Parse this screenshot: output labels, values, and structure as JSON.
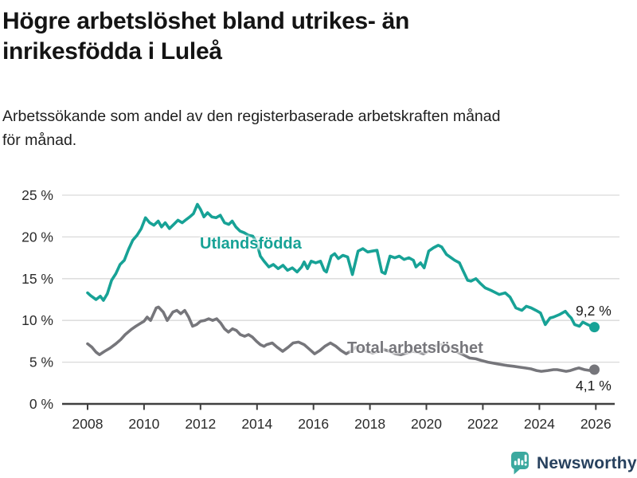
{
  "header": {
    "title": "Högre arbetslöshet bland utrikes- än inrikesfödda i Luleå",
    "title_lines": [
      "Högre arbetslöshet bland utrikes- än",
      "inrikesfödda i Luleå"
    ],
    "subtitle_lines": [
      "Arbetssökande som andel av den registerbaserade arbetskraften månad",
      "för månad."
    ]
  },
  "branding": {
    "logo_text": "Newsworthy",
    "logo_icon": "bar-chart-speech-bubble",
    "logo_color": "#3BA99F",
    "logo_text_color": "#27415E"
  },
  "colors": {
    "series_foreign_born": "#17A296",
    "series_total": "#76767B",
    "grid": "#D9D9D9",
    "axis": "#3F3F3F",
    "tick_text": "#2B2B2B",
    "end_label_text": "#1A1A1A"
  },
  "chart_data": {
    "type": "line",
    "title": "Högre arbetslöshet bland utrikes- än inrikesfödda i Luleå",
    "subtitle": "Arbetssökande som andel av den registerbaserade arbetskraften månad för månad.",
    "unit": "%",
    "grid": "horizontal",
    "legend_position": "inline-labels",
    "x_axis": {
      "range": [
        2007.6,
        2026.35
      ],
      "ticks": [
        2008,
        2010,
        2012,
        2014,
        2016,
        2018,
        2020,
        2022,
        2024,
        2026
      ],
      "tick_labels": [
        "2008",
        "2010",
        "2012",
        "2014",
        "2016",
        "2018",
        "2020",
        "2022",
        "2024",
        "2026"
      ]
    },
    "y_axis": {
      "range": [
        0,
        25
      ],
      "ticks": [
        0,
        5,
        10,
        15,
        20,
        25
      ],
      "tick_labels": [
        "0 %",
        "5 %",
        "10 %",
        "15 %",
        "20 %",
        "25 %"
      ]
    },
    "series": [
      {
        "name": "Utlandsfödda",
        "color": "#17A296",
        "end_label": "9,2 %",
        "end_value": 9.2,
        "points": [
          [
            2008.0,
            13.3
          ],
          [
            2008.1,
            13.0
          ],
          [
            2008.3,
            12.5
          ],
          [
            2008.45,
            12.9
          ],
          [
            2008.56,
            12.4
          ],
          [
            2008.7,
            13.2
          ],
          [
            2008.85,
            14.8
          ],
          [
            2009.0,
            15.6
          ],
          [
            2009.15,
            16.7
          ],
          [
            2009.3,
            17.2
          ],
          [
            2009.45,
            18.5
          ],
          [
            2009.6,
            19.6
          ],
          [
            2009.75,
            20.2
          ],
          [
            2009.9,
            21.0
          ],
          [
            2010.05,
            22.3
          ],
          [
            2010.2,
            21.7
          ],
          [
            2010.35,
            21.4
          ],
          [
            2010.5,
            21.9
          ],
          [
            2010.62,
            21.2
          ],
          [
            2010.75,
            21.7
          ],
          [
            2010.9,
            21.0
          ],
          [
            2011.05,
            21.5
          ],
          [
            2011.2,
            22.0
          ],
          [
            2011.35,
            21.7
          ],
          [
            2011.5,
            22.1
          ],
          [
            2011.62,
            22.4
          ],
          [
            2011.75,
            22.8
          ],
          [
            2011.89,
            23.9
          ],
          [
            2012.0,
            23.3
          ],
          [
            2012.12,
            22.4
          ],
          [
            2012.25,
            22.9
          ],
          [
            2012.4,
            22.4
          ],
          [
            2012.55,
            22.3
          ],
          [
            2012.7,
            22.6
          ],
          [
            2012.85,
            21.7
          ],
          [
            2013.0,
            21.5
          ],
          [
            2013.12,
            21.9
          ],
          [
            2013.25,
            21.2
          ],
          [
            2013.4,
            20.7
          ],
          [
            2013.55,
            20.5
          ],
          [
            2013.7,
            20.2
          ],
          [
            2013.85,
            20.1
          ],
          [
            2013.98,
            19.4
          ],
          [
            2014.12,
            17.7
          ],
          [
            2014.25,
            17.1
          ],
          [
            2014.42,
            16.4
          ],
          [
            2014.58,
            16.7
          ],
          [
            2014.75,
            16.2
          ],
          [
            2014.92,
            16.6
          ],
          [
            2015.08,
            16.0
          ],
          [
            2015.25,
            16.3
          ],
          [
            2015.42,
            15.8
          ],
          [
            2015.58,
            16.4
          ],
          [
            2015.67,
            17.0
          ],
          [
            2015.79,
            16.2
          ],
          [
            2015.92,
            17.1
          ],
          [
            2016.08,
            16.9
          ],
          [
            2016.25,
            17.1
          ],
          [
            2016.38,
            16.0
          ],
          [
            2016.46,
            15.8
          ],
          [
            2016.63,
            17.7
          ],
          [
            2016.75,
            18.0
          ],
          [
            2016.88,
            17.4
          ],
          [
            2017.04,
            17.8
          ],
          [
            2017.21,
            17.6
          ],
          [
            2017.38,
            15.5
          ],
          [
            2017.58,
            18.3
          ],
          [
            2017.75,
            18.6
          ],
          [
            2017.92,
            18.2
          ],
          [
            2018.08,
            18.3
          ],
          [
            2018.25,
            18.4
          ],
          [
            2018.42,
            15.8
          ],
          [
            2018.54,
            15.6
          ],
          [
            2018.71,
            17.7
          ],
          [
            2018.88,
            17.5
          ],
          [
            2019.04,
            17.7
          ],
          [
            2019.21,
            17.3
          ],
          [
            2019.38,
            17.5
          ],
          [
            2019.54,
            17.2
          ],
          [
            2019.63,
            16.4
          ],
          [
            2019.79,
            16.9
          ],
          [
            2019.92,
            16.3
          ],
          [
            2020.08,
            18.3
          ],
          [
            2020.25,
            18.7
          ],
          [
            2020.42,
            19.0
          ],
          [
            2020.54,
            18.8
          ],
          [
            2020.71,
            17.9
          ],
          [
            2020.88,
            17.5
          ],
          [
            2021.0,
            17.2
          ],
          [
            2021.17,
            16.9
          ],
          [
            2021.29,
            16.0
          ],
          [
            2021.46,
            14.8
          ],
          [
            2021.58,
            14.7
          ],
          [
            2021.75,
            15.0
          ],
          [
            2021.92,
            14.4
          ],
          [
            2022.08,
            13.9
          ],
          [
            2022.29,
            13.6
          ],
          [
            2022.58,
            13.1
          ],
          [
            2022.79,
            13.3
          ],
          [
            2022.96,
            12.8
          ],
          [
            2023.17,
            11.5
          ],
          [
            2023.38,
            11.2
          ],
          [
            2023.54,
            11.7
          ],
          [
            2023.71,
            11.5
          ],
          [
            2023.88,
            11.2
          ],
          [
            2024.04,
            10.9
          ],
          [
            2024.21,
            9.5
          ],
          [
            2024.38,
            10.3
          ],
          [
            2024.5,
            10.4
          ],
          [
            2024.71,
            10.7
          ],
          [
            2024.92,
            11.1
          ],
          [
            2025.04,
            10.6
          ],
          [
            2025.13,
            10.3
          ],
          [
            2025.25,
            9.5
          ],
          [
            2025.42,
            9.3
          ],
          [
            2025.54,
            9.8
          ],
          [
            2025.71,
            9.5
          ],
          [
            2025.83,
            9.3
          ],
          [
            2025.95,
            9.2
          ]
        ]
      },
      {
        "name": "Total arbetslöshet",
        "color": "#76767B",
        "end_label": "4,1 %",
        "end_value": 4.1,
        "points": [
          [
            2008.0,
            7.2
          ],
          [
            2008.15,
            6.8
          ],
          [
            2008.3,
            6.2
          ],
          [
            2008.42,
            5.9
          ],
          [
            2008.6,
            6.3
          ],
          [
            2008.8,
            6.7
          ],
          [
            2009.0,
            7.2
          ],
          [
            2009.17,
            7.7
          ],
          [
            2009.33,
            8.3
          ],
          [
            2009.54,
            8.9
          ],
          [
            2009.71,
            9.3
          ],
          [
            2009.85,
            9.6
          ],
          [
            2010.0,
            9.9
          ],
          [
            2010.11,
            10.4
          ],
          [
            2010.23,
            10.0
          ],
          [
            2010.43,
            11.5
          ],
          [
            2010.51,
            11.6
          ],
          [
            2010.68,
            11.0
          ],
          [
            2010.82,
            10.0
          ],
          [
            2011.02,
            11.0
          ],
          [
            2011.16,
            11.2
          ],
          [
            2011.3,
            10.8
          ],
          [
            2011.44,
            11.2
          ],
          [
            2011.58,
            10.4
          ],
          [
            2011.72,
            9.3
          ],
          [
            2011.86,
            9.5
          ],
          [
            2012.0,
            9.9
          ],
          [
            2012.15,
            10.0
          ],
          [
            2012.29,
            10.2
          ],
          [
            2012.43,
            10.0
          ],
          [
            2012.57,
            10.2
          ],
          [
            2012.71,
            9.7
          ],
          [
            2012.85,
            9.0
          ],
          [
            2012.99,
            8.6
          ],
          [
            2013.13,
            9.0
          ],
          [
            2013.27,
            8.8
          ],
          [
            2013.41,
            8.3
          ],
          [
            2013.56,
            8.1
          ],
          [
            2013.7,
            8.3
          ],
          [
            2013.84,
            8.0
          ],
          [
            2013.98,
            7.5
          ],
          [
            2014.12,
            7.1
          ],
          [
            2014.25,
            6.9
          ],
          [
            2014.34,
            7.1
          ],
          [
            2014.54,
            7.3
          ],
          [
            2014.71,
            6.8
          ],
          [
            2014.91,
            6.3
          ],
          [
            2015.11,
            6.8
          ],
          [
            2015.28,
            7.3
          ],
          [
            2015.47,
            7.4
          ],
          [
            2015.67,
            7.1
          ],
          [
            2015.84,
            6.6
          ],
          [
            2016.04,
            6.0
          ],
          [
            2016.23,
            6.4
          ],
          [
            2016.4,
            6.9
          ],
          [
            2016.6,
            7.3
          ],
          [
            2016.8,
            6.9
          ],
          [
            2016.97,
            6.4
          ],
          [
            2017.16,
            6.0
          ],
          [
            2017.36,
            6.4
          ],
          [
            2017.5,
            6.8
          ],
          [
            2017.7,
            6.6
          ],
          [
            2017.9,
            6.3
          ],
          [
            2018.1,
            6.1
          ],
          [
            2018.3,
            6.3
          ],
          [
            2018.5,
            6.5
          ],
          [
            2018.7,
            6.3
          ],
          [
            2018.9,
            6.0
          ],
          [
            2019.1,
            5.9
          ],
          [
            2019.3,
            6.1
          ],
          [
            2019.5,
            6.3
          ],
          [
            2019.7,
            6.2
          ],
          [
            2019.9,
            6.0
          ],
          [
            2020.1,
            6.4
          ],
          [
            2020.3,
            6.9
          ],
          [
            2020.5,
            7.1
          ],
          [
            2020.7,
            6.9
          ],
          [
            2020.9,
            6.6
          ],
          [
            2021.1,
            6.2
          ],
          [
            2021.3,
            5.9
          ],
          [
            2021.53,
            5.5
          ],
          [
            2021.75,
            5.4
          ],
          [
            2021.95,
            5.2
          ],
          [
            2022.18,
            5.0
          ],
          [
            2022.5,
            4.8
          ],
          [
            2022.86,
            4.6
          ],
          [
            2023.1,
            4.5
          ],
          [
            2023.3,
            4.4
          ],
          [
            2023.5,
            4.3
          ],
          [
            2023.7,
            4.2
          ],
          [
            2023.9,
            4.0
          ],
          [
            2024.07,
            3.9
          ],
          [
            2024.3,
            4.0
          ],
          [
            2024.5,
            4.1
          ],
          [
            2024.63,
            4.1
          ],
          [
            2024.8,
            4.0
          ],
          [
            2024.95,
            3.9
          ],
          [
            2025.1,
            4.0
          ],
          [
            2025.28,
            4.2
          ],
          [
            2025.4,
            4.3
          ],
          [
            2025.6,
            4.1
          ],
          [
            2025.8,
            4.0
          ],
          [
            2025.95,
            4.1
          ]
        ]
      }
    ]
  }
}
